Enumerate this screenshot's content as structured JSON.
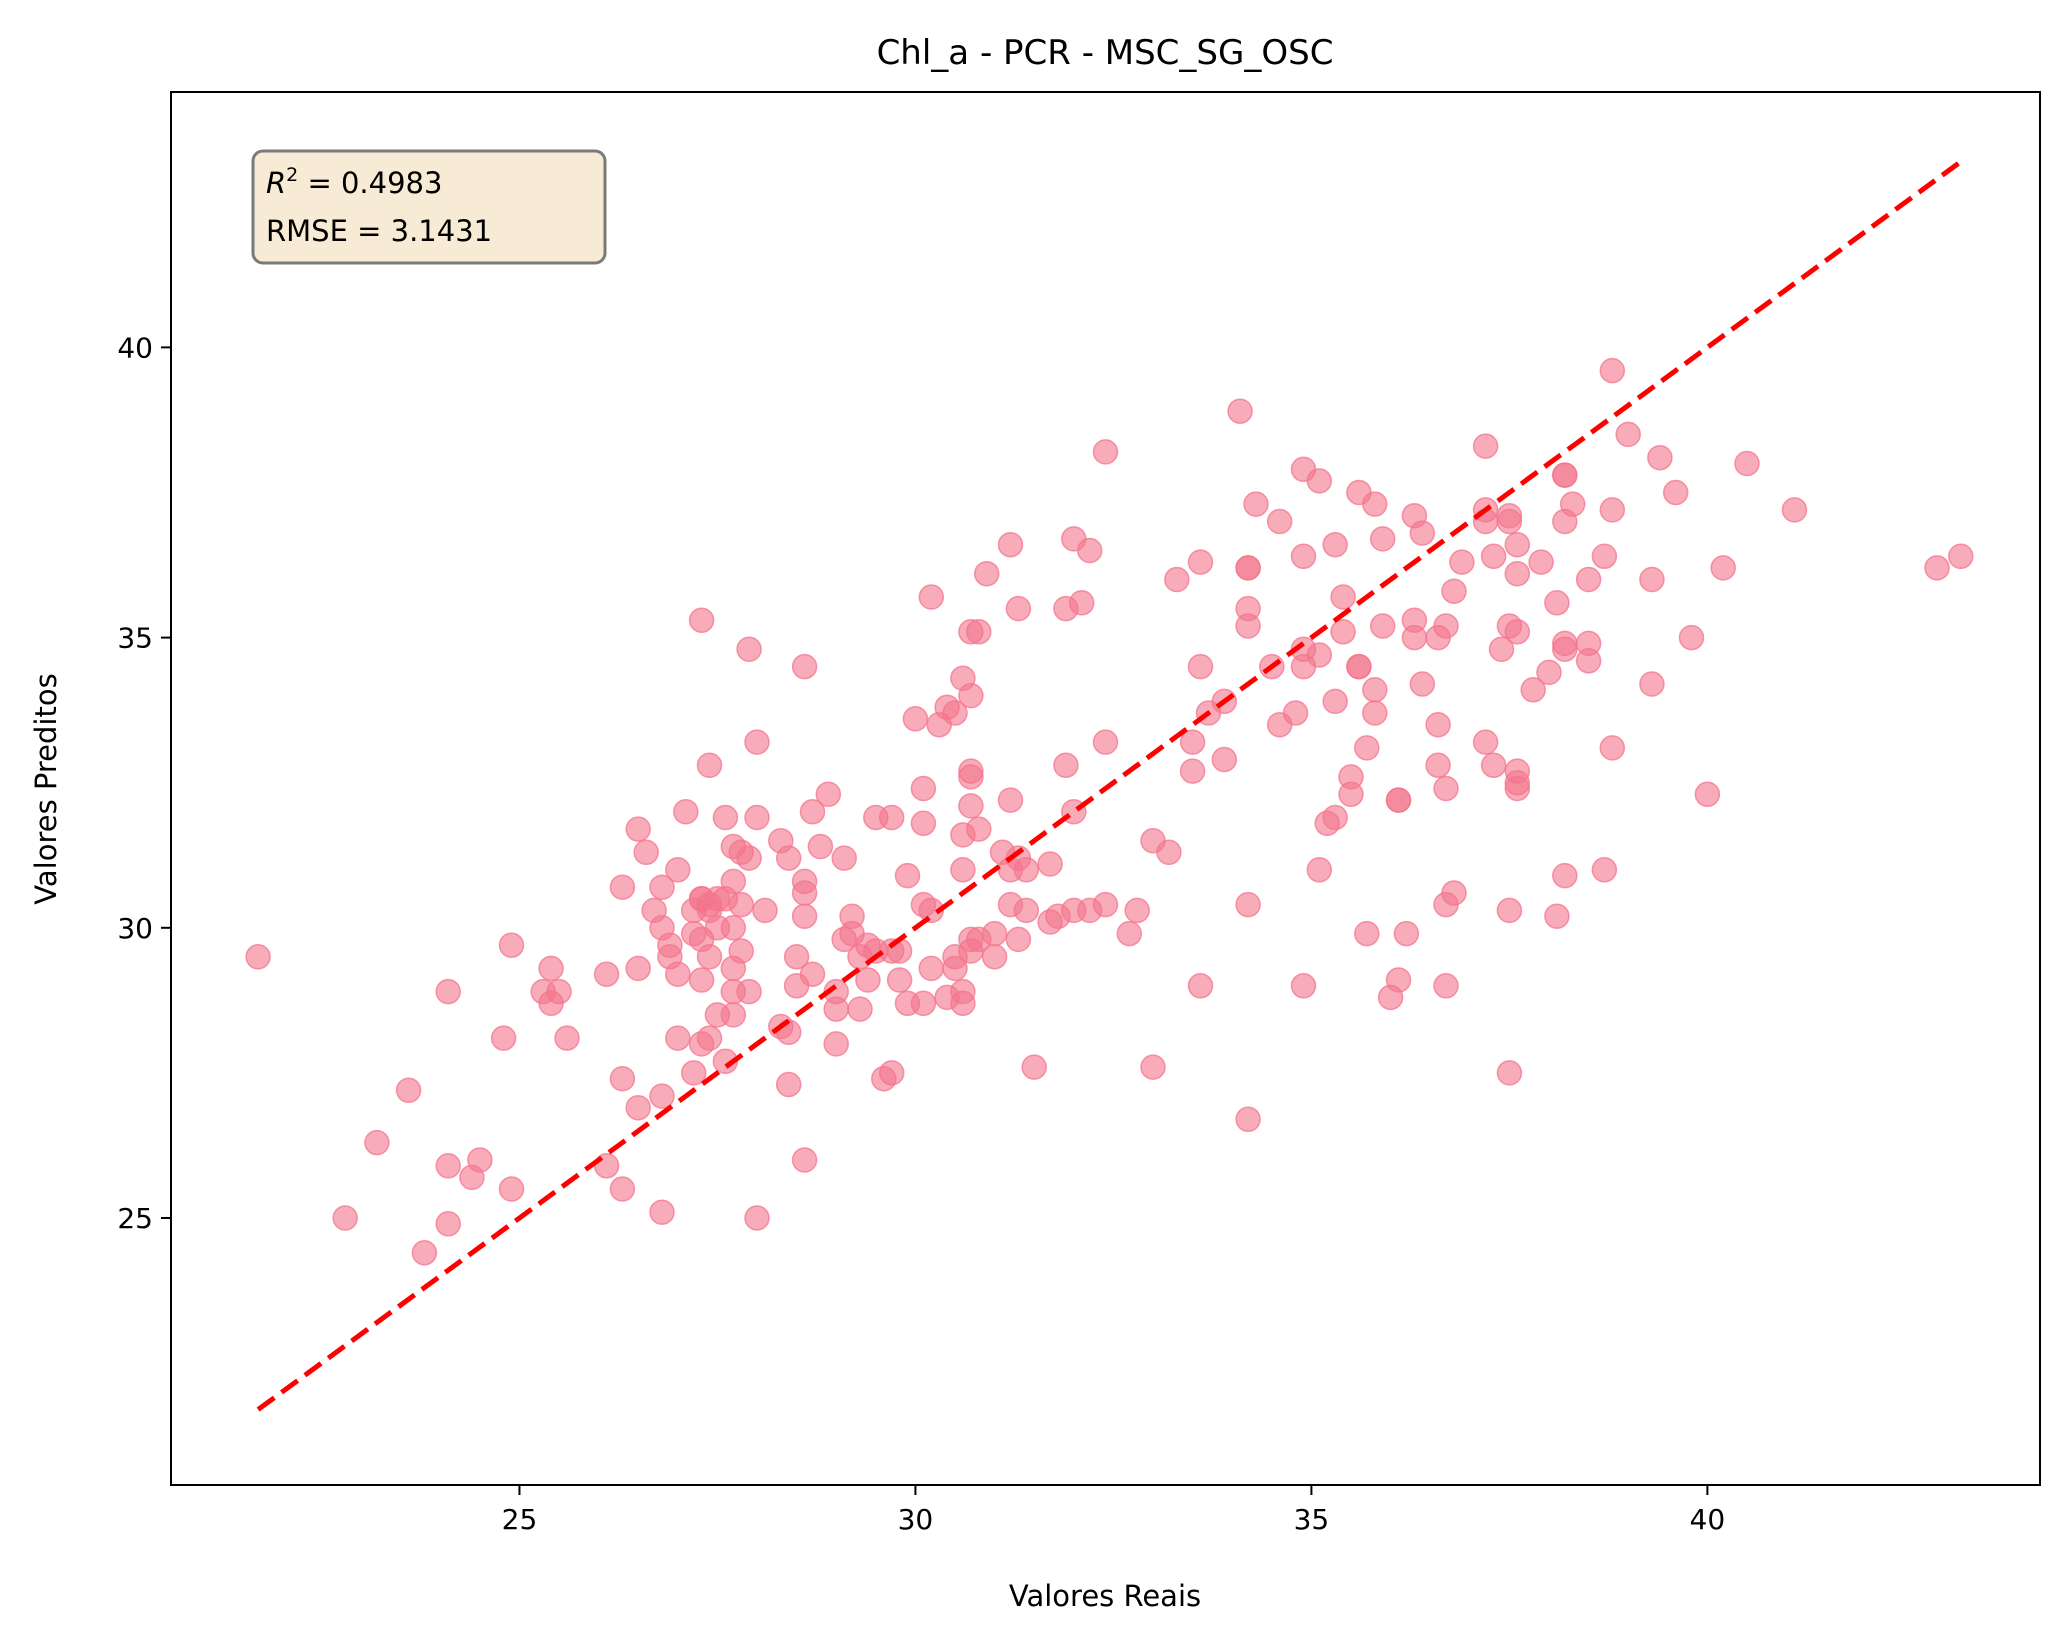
{
  "chart_data": {
    "type": "scatter",
    "title": "Chl_a - PCR - MSC_SG_OSC",
    "xlabel": "Valores Reais",
    "ylabel": "Valores Preditos",
    "xlim": [
      20.6,
      44.2
    ],
    "ylim": [
      20.4,
      44.4
    ],
    "xticks": [
      25,
      30,
      35,
      40
    ],
    "yticks": [
      25,
      30,
      35,
      40
    ],
    "xtick_labels": [
      "25",
      "30",
      "35",
      "40"
    ],
    "ytick_labels": [
      "25",
      "30",
      "35",
      "40"
    ],
    "grid": false,
    "annotation": {
      "r2_symbol": "R",
      "r2_exponent": "2",
      "r2_value": " = 0.4983",
      "rmse_line": "RMSE = 3.1431",
      "placement": "top-left"
    },
    "reference_line": {
      "x": [
        21.7,
        43.2
      ],
      "y": [
        21.7,
        43.2
      ],
      "style": "dashed",
      "color": "#ff0000"
    },
    "marker_color": "#f4748c",
    "points": [
      [
        21.7,
        29.5
      ],
      [
        22.8,
        25.0
      ],
      [
        23.2,
        26.3
      ],
      [
        23.6,
        27.2
      ],
      [
        23.8,
        24.4
      ],
      [
        24.1,
        24.9
      ],
      [
        24.1,
        25.9
      ],
      [
        24.1,
        28.9
      ],
      [
        24.4,
        25.7
      ],
      [
        24.5,
        26.0
      ],
      [
        24.8,
        28.1
      ],
      [
        24.9,
        25.5
      ],
      [
        24.9,
        29.7
      ],
      [
        25.3,
        28.9
      ],
      [
        25.4,
        29.3
      ],
      [
        25.4,
        28.7
      ],
      [
        25.5,
        28.9
      ],
      [
        25.6,
        28.1
      ],
      [
        26.1,
        29.2
      ],
      [
        26.1,
        25.9
      ],
      [
        26.3,
        25.5
      ],
      [
        26.3,
        27.4
      ],
      [
        26.3,
        30.7
      ],
      [
        26.5,
        31.7
      ],
      [
        26.5,
        29.3
      ],
      [
        26.5,
        26.9
      ],
      [
        26.6,
        31.3
      ],
      [
        26.7,
        30.3
      ],
      [
        26.8,
        30.7
      ],
      [
        26.8,
        30.0
      ],
      [
        26.8,
        27.1
      ],
      [
        26.8,
        25.1
      ],
      [
        26.9,
        29.7
      ],
      [
        26.9,
        29.5
      ],
      [
        27.0,
        31.0
      ],
      [
        27.0,
        29.2
      ],
      [
        27.0,
        28.1
      ],
      [
        27.1,
        32.0
      ],
      [
        27.2,
        30.3
      ],
      [
        27.2,
        29.9
      ],
      [
        27.2,
        27.5
      ],
      [
        27.3,
        35.3
      ],
      [
        27.3,
        30.5
      ],
      [
        27.3,
        30.5
      ],
      [
        27.3,
        29.8
      ],
      [
        27.3,
        29.1
      ],
      [
        27.3,
        28.0
      ],
      [
        27.4,
        30.4
      ],
      [
        27.4,
        30.3
      ],
      [
        27.4,
        29.5
      ],
      [
        27.4,
        28.1
      ],
      [
        27.4,
        32.8
      ],
      [
        27.5,
        30.5
      ],
      [
        27.5,
        30.0
      ],
      [
        27.5,
        28.5
      ],
      [
        27.6,
        31.9
      ],
      [
        27.6,
        30.5
      ],
      [
        27.6,
        27.7
      ],
      [
        27.7,
        31.4
      ],
      [
        27.7,
        30.8
      ],
      [
        27.7,
        30.0
      ],
      [
        27.7,
        29.3
      ],
      [
        27.7,
        28.9
      ],
      [
        27.7,
        28.5
      ],
      [
        27.8,
        31.3
      ],
      [
        27.8,
        30.4
      ],
      [
        27.8,
        29.6
      ],
      [
        27.9,
        34.8
      ],
      [
        27.9,
        31.2
      ],
      [
        27.9,
        28.9
      ],
      [
        28.0,
        33.2
      ],
      [
        28.0,
        31.9
      ],
      [
        28.0,
        25.0
      ],
      [
        28.1,
        30.3
      ],
      [
        28.3,
        31.5
      ],
      [
        28.3,
        28.3
      ],
      [
        28.4,
        27.3
      ],
      [
        28.4,
        28.2
      ],
      [
        28.4,
        31.2
      ],
      [
        28.5,
        29.5
      ],
      [
        28.5,
        29.0
      ],
      [
        28.6,
        34.5
      ],
      [
        28.6,
        30.8
      ],
      [
        28.6,
        30.6
      ],
      [
        28.6,
        30.2
      ],
      [
        28.6,
        26.0
      ],
      [
        28.7,
        32.0
      ],
      [
        28.7,
        29.2
      ],
      [
        28.8,
        31.4
      ],
      [
        28.9,
        32.3
      ],
      [
        29.0,
        28.9
      ],
      [
        29.0,
        28.6
      ],
      [
        29.0,
        28.0
      ],
      [
        29.1,
        31.2
      ],
      [
        29.1,
        29.8
      ],
      [
        29.2,
        30.2
      ],
      [
        29.2,
        29.9
      ],
      [
        29.3,
        29.5
      ],
      [
        29.3,
        28.6
      ],
      [
        29.4,
        29.7
      ],
      [
        29.4,
        29.1
      ],
      [
        29.5,
        31.9
      ],
      [
        29.5,
        29.6
      ],
      [
        29.6,
        27.4
      ],
      [
        29.7,
        31.9
      ],
      [
        29.7,
        29.6
      ],
      [
        29.7,
        27.5
      ],
      [
        29.8,
        29.6
      ],
      [
        29.8,
        29.1
      ],
      [
        29.9,
        30.9
      ],
      [
        29.9,
        28.7
      ],
      [
        30.0,
        33.6
      ],
      [
        30.1,
        32.4
      ],
      [
        30.1,
        31.8
      ],
      [
        30.1,
        30.4
      ],
      [
        30.1,
        28.7
      ],
      [
        30.2,
        35.7
      ],
      [
        30.2,
        30.3
      ],
      [
        30.2,
        29.3
      ],
      [
        30.3,
        33.5
      ],
      [
        30.4,
        33.8
      ],
      [
        30.4,
        28.8
      ],
      [
        30.5,
        33.7
      ],
      [
        30.5,
        29.5
      ],
      [
        30.5,
        29.3
      ],
      [
        30.6,
        34.3
      ],
      [
        30.6,
        31.6
      ],
      [
        30.6,
        31.0
      ],
      [
        30.6,
        28.9
      ],
      [
        30.6,
        28.7
      ],
      [
        30.7,
        35.1
      ],
      [
        30.7,
        34.0
      ],
      [
        30.7,
        32.7
      ],
      [
        30.7,
        32.6
      ],
      [
        30.7,
        32.1
      ],
      [
        30.7,
        29.8
      ],
      [
        30.7,
        29.6
      ],
      [
        30.8,
        35.1
      ],
      [
        30.8,
        31.7
      ],
      [
        30.8,
        29.8
      ],
      [
        30.9,
        36.1
      ],
      [
        31.0,
        29.9
      ],
      [
        31.0,
        29.5
      ],
      [
        31.1,
        31.3
      ],
      [
        31.2,
        36.6
      ],
      [
        31.2,
        32.2
      ],
      [
        31.2,
        30.4
      ],
      [
        31.2,
        31.0
      ],
      [
        31.3,
        35.5
      ],
      [
        31.3,
        31.2
      ],
      [
        31.3,
        29.8
      ],
      [
        31.4,
        31.0
      ],
      [
        31.4,
        30.3
      ],
      [
        31.5,
        27.6
      ],
      [
        31.7,
        31.1
      ],
      [
        31.7,
        30.1
      ],
      [
        31.8,
        30.2
      ],
      [
        31.9,
        35.5
      ],
      [
        31.9,
        32.8
      ],
      [
        32.0,
        36.7
      ],
      [
        32.0,
        32.0
      ],
      [
        32.0,
        30.3
      ],
      [
        32.1,
        35.6
      ],
      [
        32.2,
        36.5
      ],
      [
        32.2,
        30.3
      ],
      [
        32.4,
        38.2
      ],
      [
        32.4,
        33.2
      ],
      [
        32.4,
        30.4
      ],
      [
        32.7,
        29.9
      ],
      [
        32.8,
        30.3
      ],
      [
        33.0,
        31.5
      ],
      [
        33.0,
        27.6
      ],
      [
        33.2,
        31.3
      ],
      [
        33.3,
        36.0
      ],
      [
        33.5,
        33.2
      ],
      [
        33.5,
        32.7
      ],
      [
        33.6,
        36.3
      ],
      [
        33.6,
        34.5
      ],
      [
        33.6,
        29.0
      ],
      [
        33.7,
        33.7
      ],
      [
        33.9,
        33.9
      ],
      [
        33.9,
        32.9
      ],
      [
        34.1,
        38.9
      ],
      [
        34.2,
        36.2
      ],
      [
        34.2,
        36.2
      ],
      [
        34.2,
        35.5
      ],
      [
        34.2,
        35.2
      ],
      [
        34.2,
        30.4
      ],
      [
        34.2,
        26.7
      ],
      [
        34.3,
        37.3
      ],
      [
        34.5,
        34.5
      ],
      [
        34.6,
        33.5
      ],
      [
        34.6,
        37.0
      ],
      [
        34.8,
        33.7
      ],
      [
        34.9,
        37.9
      ],
      [
        34.9,
        36.4
      ],
      [
        34.9,
        34.8
      ],
      [
        34.9,
        34.5
      ],
      [
        34.9,
        29.0
      ],
      [
        35.1,
        37.7
      ],
      [
        35.1,
        34.7
      ],
      [
        35.1,
        31.0
      ],
      [
        35.2,
        31.8
      ],
      [
        35.3,
        36.6
      ],
      [
        35.3,
        33.9
      ],
      [
        35.3,
        31.9
      ],
      [
        35.4,
        35.7
      ],
      [
        35.4,
        35.1
      ],
      [
        35.5,
        32.6
      ],
      [
        35.5,
        32.3
      ],
      [
        35.6,
        37.5
      ],
      [
        35.6,
        34.5
      ],
      [
        35.6,
        34.5
      ],
      [
        35.7,
        33.1
      ],
      [
        35.7,
        29.9
      ],
      [
        35.8,
        37.3
      ],
      [
        35.8,
        34.1
      ],
      [
        35.8,
        33.7
      ],
      [
        35.9,
        36.7
      ],
      [
        35.9,
        35.2
      ],
      [
        36.0,
        28.8
      ],
      [
        36.1,
        32.2
      ],
      [
        36.1,
        32.2
      ],
      [
        36.1,
        29.1
      ],
      [
        36.2,
        29.9
      ],
      [
        36.3,
        37.1
      ],
      [
        36.3,
        35.3
      ],
      [
        36.3,
        35.0
      ],
      [
        36.4,
        36.8
      ],
      [
        36.4,
        34.2
      ],
      [
        36.6,
        35.0
      ],
      [
        36.6,
        33.5
      ],
      [
        36.6,
        32.8
      ],
      [
        36.7,
        35.2
      ],
      [
        36.7,
        32.4
      ],
      [
        36.7,
        30.4
      ],
      [
        36.7,
        29.0
      ],
      [
        36.8,
        35.8
      ],
      [
        36.8,
        30.6
      ],
      [
        36.9,
        36.3
      ],
      [
        37.2,
        38.3
      ],
      [
        37.2,
        37.2
      ],
      [
        37.2,
        37.0
      ],
      [
        37.2,
        33.2
      ],
      [
        37.3,
        36.4
      ],
      [
        37.3,
        32.8
      ],
      [
        37.4,
        34.8
      ],
      [
        37.5,
        37.1
      ],
      [
        37.5,
        37.0
      ],
      [
        37.5,
        35.2
      ],
      [
        37.5,
        30.3
      ],
      [
        37.5,
        27.5
      ],
      [
        37.6,
        36.6
      ],
      [
        37.6,
        36.1
      ],
      [
        37.6,
        35.1
      ],
      [
        37.6,
        32.7
      ],
      [
        37.6,
        32.5
      ],
      [
        37.6,
        32.4
      ],
      [
        37.8,
        34.1
      ],
      [
        37.9,
        36.3
      ],
      [
        38.0,
        34.4
      ],
      [
        38.1,
        35.6
      ],
      [
        38.1,
        30.2
      ],
      [
        38.2,
        37.8
      ],
      [
        38.2,
        37.8
      ],
      [
        38.2,
        37.0
      ],
      [
        38.2,
        34.9
      ],
      [
        38.2,
        34.8
      ],
      [
        38.2,
        30.9
      ],
      [
        38.3,
        37.3
      ],
      [
        38.5,
        36.0
      ],
      [
        38.5,
        34.9
      ],
      [
        38.5,
        34.6
      ],
      [
        38.7,
        36.4
      ],
      [
        38.7,
        31.0
      ],
      [
        38.8,
        39.6
      ],
      [
        38.8,
        37.2
      ],
      [
        38.8,
        33.1
      ],
      [
        39.0,
        38.5
      ],
      [
        39.3,
        36.0
      ],
      [
        39.3,
        34.2
      ],
      [
        39.4,
        38.1
      ],
      [
        39.6,
        37.5
      ],
      [
        39.8,
        35.0
      ],
      [
        40.0,
        32.3
      ],
      [
        40.2,
        36.2
      ],
      [
        40.5,
        38.0
      ],
      [
        41.1,
        37.2
      ],
      [
        42.9,
        36.2
      ],
      [
        43.2,
        36.4
      ]
    ]
  }
}
